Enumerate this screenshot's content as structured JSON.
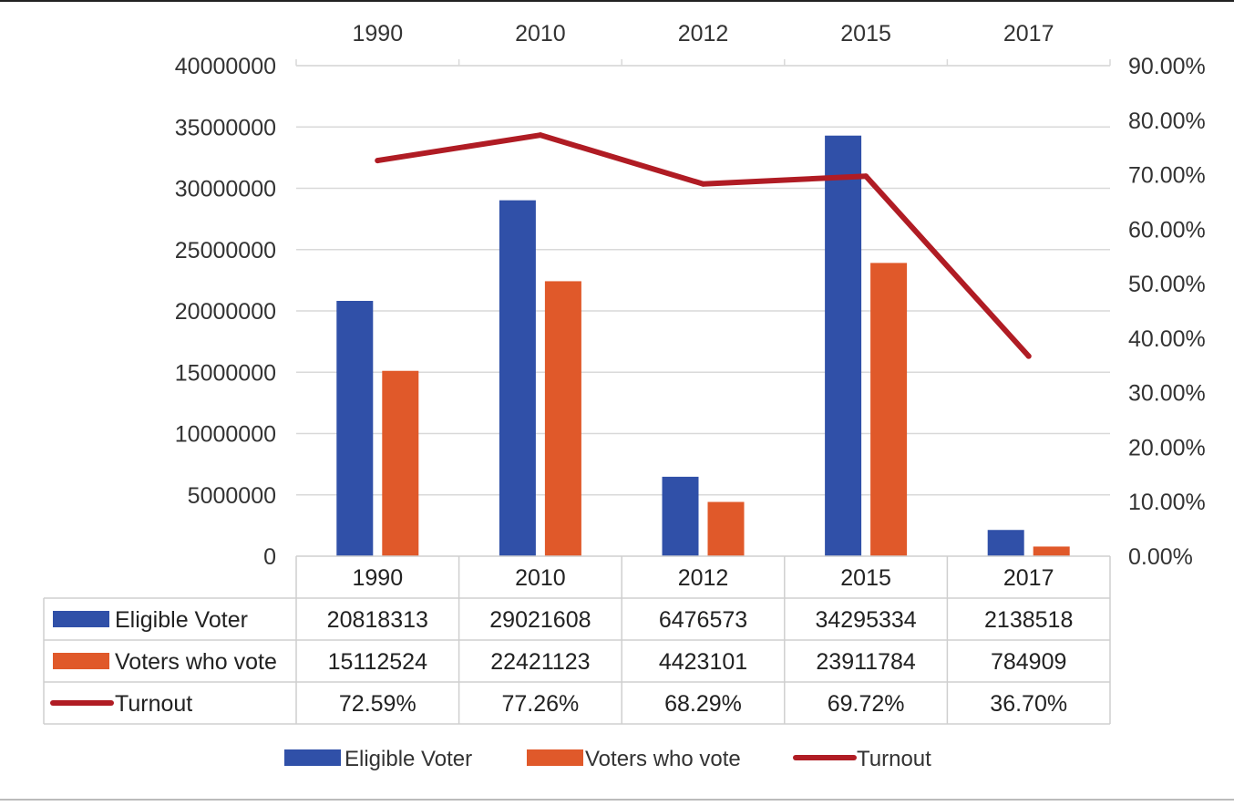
{
  "chart_data": {
    "type": "bar",
    "title": "",
    "categories": [
      "1990",
      "2010",
      "2012",
      "2015",
      "2017"
    ],
    "series": [
      {
        "name": "Eligible Voter",
        "kind": "bar",
        "axis": "left",
        "color": "#3050a8",
        "values": [
          20818313,
          29021608,
          6476573,
          34295334,
          2138518
        ],
        "labels": [
          "20818313",
          "29021608",
          "6476573",
          "34295334",
          "2138518"
        ]
      },
      {
        "name": "Voters who vote",
        "kind": "bar",
        "axis": "left",
        "color": "#e0592a",
        "values": [
          15112524,
          22421123,
          4423101,
          23911784,
          784909
        ],
        "labels": [
          "15112524",
          "22421123",
          "4423101",
          "23911784",
          "784909"
        ]
      },
      {
        "name": "Turnout",
        "kind": "line",
        "axis": "right",
        "color": "#b01c24",
        "values": [
          72.59,
          77.26,
          68.29,
          69.72,
          36.7
        ],
        "labels": [
          "72.59%",
          "77.26%",
          "68.29%",
          "69.72%",
          "36.70%"
        ]
      }
    ],
    "y_left": {
      "min": 0,
      "max": 40000000,
      "ticks": [
        0,
        5000000,
        10000000,
        15000000,
        20000000,
        25000000,
        30000000,
        35000000,
        40000000
      ],
      "tick_labels": [
        "0",
        "5000000",
        "10000000",
        "15000000",
        "20000000",
        "25000000",
        "30000000",
        "35000000",
        "40000000"
      ]
    },
    "y_right": {
      "min": 0,
      "max": 90,
      "ticks": [
        0,
        10,
        20,
        30,
        40,
        50,
        60,
        70,
        80,
        90
      ],
      "tick_labels": [
        "0.00%",
        "10.00%",
        "20.00%",
        "30.00%",
        "40.00%",
        "50.00%",
        "60.00%",
        "70.00%",
        "80.00%",
        "90.00%"
      ]
    },
    "grid": true,
    "legend_position": "bottom",
    "data_table": true
  }
}
